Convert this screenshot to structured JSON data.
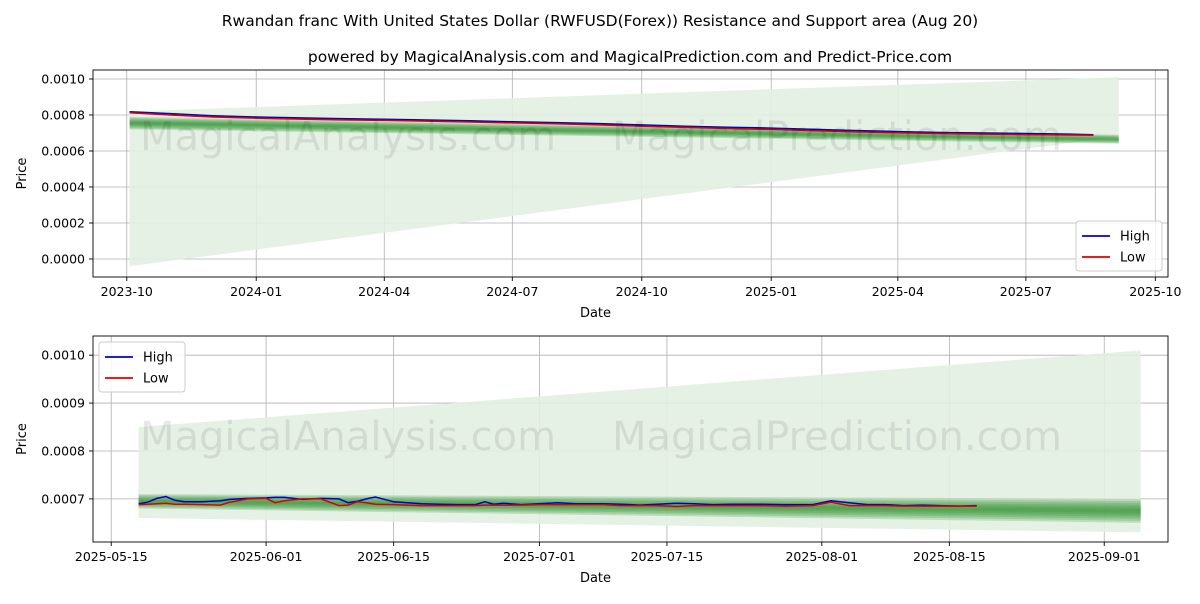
{
  "title": "Rwandan franc With United States Dollar (RWFUSD(Forex)) Resistance and Support area (Aug 20)",
  "subtitle": "powered by MagicalAnalysis.com and MagicalPrediction.com and Predict-Price.com",
  "watermarks": [
    "MagicalAnalysis.com",
    "MagicalPrediction.com"
  ],
  "colors": {
    "high": "#0000cc",
    "low": "#dd0000",
    "band": "#228b22",
    "cone": "#e3f0e3"
  },
  "chart_data": [
    {
      "type": "line",
      "title": "",
      "xlabel": "Date",
      "ylabel": "Price",
      "xlim": [
        "2023-09-07",
        "2025-10-10"
      ],
      "ylim": [
        -0.0001,
        0.00105
      ],
      "xticks": [
        {
          "date": "2023-10-01",
          "label": "2023-10"
        },
        {
          "date": "2024-01-01",
          "label": "2024-01"
        },
        {
          "date": "2024-04-01",
          "label": "2024-04"
        },
        {
          "date": "2024-07-01",
          "label": "2024-07"
        },
        {
          "date": "2024-10-01",
          "label": "2024-10"
        },
        {
          "date": "2025-01-01",
          "label": "2025-01"
        },
        {
          "date": "2025-04-01",
          "label": "2025-04"
        },
        {
          "date": "2025-07-01",
          "label": "2025-07"
        },
        {
          "date": "2025-10-01",
          "label": "2025-10"
        }
      ],
      "yticks": [
        {
          "value": 0.0,
          "label": "0.0000"
        },
        {
          "value": 0.0002,
          "label": "0.0002"
        },
        {
          "value": 0.0004,
          "label": "0.0004"
        },
        {
          "value": 0.0006,
          "label": "0.0006"
        },
        {
          "value": 0.0008,
          "label": "0.0008"
        },
        {
          "value": 0.001,
          "label": "0.0010"
        }
      ],
      "grid": true,
      "legend": {
        "position": "lower-right",
        "entries": [
          "High",
          "Low"
        ]
      },
      "series": [
        {
          "name": "High",
          "x": [
            "2023-10-03",
            "2023-11-01",
            "2023-12-01",
            "2024-01-01",
            "2024-02-01",
            "2024-03-01",
            "2024-04-01",
            "2024-05-01",
            "2024-06-01",
            "2024-07-01",
            "2024-08-01",
            "2024-09-01",
            "2024-10-01",
            "2024-11-01",
            "2024-12-01",
            "2025-01-01",
            "2025-02-01",
            "2025-03-01",
            "2025-04-01",
            "2025-05-01",
            "2025-06-01",
            "2025-07-01",
            "2025-08-01",
            "2025-08-18"
          ],
          "values": [
            0.000818,
            0.000808,
            0.000796,
            0.000789,
            0.000784,
            0.00078,
            0.000776,
            0.000772,
            0.000768,
            0.000762,
            0.000758,
            0.000752,
            0.000745,
            0.000738,
            0.000732,
            0.000727,
            0.00072,
            0.000714,
            0.000708,
            0.000703,
            0.0007,
            0.000697,
            0.000694,
            0.00069
          ]
        },
        {
          "name": "Low",
          "x": [
            "2023-10-03",
            "2023-11-01",
            "2023-12-01",
            "2024-01-01",
            "2024-02-01",
            "2024-03-01",
            "2024-04-01",
            "2024-05-01",
            "2024-06-01",
            "2024-07-01",
            "2024-08-01",
            "2024-09-01",
            "2024-10-01",
            "2024-11-01",
            "2024-12-01",
            "2025-01-01",
            "2025-02-01",
            "2025-03-01",
            "2025-04-01",
            "2025-05-01",
            "2025-06-01",
            "2025-07-01",
            "2025-08-01",
            "2025-08-18"
          ],
          "values": [
            0.000812,
            0.0008,
            0.000789,
            0.000782,
            0.000777,
            0.000773,
            0.00077,
            0.000766,
            0.000761,
            0.000756,
            0.000751,
            0.000745,
            0.000738,
            0.000731,
            0.000725,
            0.00072,
            0.000713,
            0.000707,
            0.000701,
            0.000697,
            0.000694,
            0.000691,
            0.000689,
            0.000687
          ]
        }
      ],
      "cone": {
        "start": "2023-10-03",
        "end": "2025-09-05",
        "start_range": [
          -4e-05,
          0.00082
        ],
        "end_range": [
          0.00068,
          0.00101
        ]
      },
      "band": {
        "start": "2023-10-03",
        "end": "2025-09-05",
        "start_range": [
          0.00072,
          0.00079
        ],
        "end_range": [
          0.00064,
          0.00069
        ]
      }
    },
    {
      "type": "line",
      "title": "",
      "xlabel": "Date",
      "ylabel": "Price",
      "xlim": [
        "2025-05-13",
        "2025-09-08"
      ],
      "ylim": [
        0.00061,
        0.00104
      ],
      "xticks": [
        {
          "date": "2025-05-15",
          "label": "2025-05-15"
        },
        {
          "date": "2025-06-01",
          "label": "2025-06-01"
        },
        {
          "date": "2025-06-15",
          "label": "2025-06-15"
        },
        {
          "date": "2025-07-01",
          "label": "2025-07-01"
        },
        {
          "date": "2025-07-15",
          "label": "2025-07-15"
        },
        {
          "date": "2025-08-01",
          "label": "2025-08-01"
        },
        {
          "date": "2025-08-15",
          "label": "2025-08-15"
        },
        {
          "date": "2025-09-01",
          "label": "2025-09-01"
        }
      ],
      "yticks": [
        {
          "value": 0.0007,
          "label": "0.0007"
        },
        {
          "value": 0.0008,
          "label": "0.0008"
        },
        {
          "value": 0.0009,
          "label": "0.0009"
        },
        {
          "value": 0.001,
          "label": "0.0010"
        }
      ],
      "grid": true,
      "legend": {
        "position": "upper-left",
        "entries": [
          "High",
          "Low"
        ]
      },
      "series": [
        {
          "name": "High",
          "x": [
            "2025-05-18",
            "2025-05-19",
            "2025-05-20",
            "2025-05-21",
            "2025-05-22",
            "2025-05-23",
            "2025-05-25",
            "2025-05-27",
            "2025-05-28",
            "2025-05-30",
            "2025-06-01",
            "2025-06-02",
            "2025-06-03",
            "2025-06-05",
            "2025-06-07",
            "2025-06-09",
            "2025-06-10",
            "2025-06-11",
            "2025-06-12",
            "2025-06-13",
            "2025-06-15",
            "2025-06-18",
            "2025-06-20",
            "2025-06-22",
            "2025-06-24",
            "2025-06-25",
            "2025-06-26",
            "2025-06-27",
            "2025-06-29",
            "2025-07-01",
            "2025-07-03",
            "2025-07-05",
            "2025-07-08",
            "2025-07-10",
            "2025-07-12",
            "2025-07-14",
            "2025-07-16",
            "2025-07-18",
            "2025-07-20",
            "2025-07-22",
            "2025-07-25",
            "2025-07-28",
            "2025-07-31",
            "2025-08-02",
            "2025-08-04",
            "2025-08-06",
            "2025-08-08",
            "2025-08-10",
            "2025-08-12",
            "2025-08-14",
            "2025-08-16",
            "2025-08-18"
          ],
          "values": [
            0.00069,
            0.000693,
            0.000701,
            0.000705,
            0.000697,
            0.000694,
            0.000694,
            0.000696,
            0.000699,
            0.000701,
            0.000702,
            0.000703,
            0.000703,
            0.000699,
            0.000701,
            0.0007,
            0.000692,
            0.000695,
            0.0007,
            0.000704,
            0.000694,
            0.00069,
            0.000689,
            0.000688,
            0.000688,
            0.000694,
            0.000689,
            0.000691,
            0.000688,
            0.00069,
            0.000692,
            0.00069,
            0.00069,
            0.000689,
            0.000687,
            0.000689,
            0.000691,
            0.00069,
            0.000688,
            0.000689,
            0.000689,
            0.000688,
            0.000688,
            0.000696,
            0.000692,
            0.000688,
            0.000688,
            0.000686,
            0.000687,
            0.000686,
            0.000685,
            0.000686
          ]
        },
        {
          "name": "Low",
          "x": [
            "2025-05-18",
            "2025-05-19",
            "2025-05-20",
            "2025-05-21",
            "2025-05-22",
            "2025-05-23",
            "2025-05-25",
            "2025-05-27",
            "2025-05-28",
            "2025-05-30",
            "2025-06-01",
            "2025-06-02",
            "2025-06-03",
            "2025-06-05",
            "2025-06-07",
            "2025-06-09",
            "2025-06-10",
            "2025-06-11",
            "2025-06-12",
            "2025-06-13",
            "2025-06-15",
            "2025-06-18",
            "2025-06-20",
            "2025-06-22",
            "2025-06-24",
            "2025-06-25",
            "2025-06-26",
            "2025-06-27",
            "2025-06-29",
            "2025-07-01",
            "2025-07-03",
            "2025-07-05",
            "2025-07-08",
            "2025-07-10",
            "2025-07-12",
            "2025-07-14",
            "2025-07-16",
            "2025-07-18",
            "2025-07-20",
            "2025-07-22",
            "2025-07-25",
            "2025-07-28",
            "2025-07-31",
            "2025-08-02",
            "2025-08-04",
            "2025-08-06",
            "2025-08-08",
            "2025-08-10",
            "2025-08-12",
            "2025-08-14",
            "2025-08-16",
            "2025-08-18"
          ],
          "values": [
            0.000688,
            0.000689,
            0.00069,
            0.000691,
            0.000689,
            0.000689,
            0.000688,
            0.000687,
            0.000693,
            0.0007,
            0.000701,
            0.000692,
            0.000696,
            0.0007,
            0.0007,
            0.000686,
            0.000687,
            0.000694,
            0.000692,
            0.000689,
            0.000688,
            0.000686,
            0.000686,
            0.000686,
            0.000686,
            0.000687,
            0.000687,
            0.000687,
            0.000687,
            0.000688,
            0.000688,
            0.000688,
            0.000688,
            0.000686,
            0.000686,
            0.000686,
            0.000684,
            0.000686,
            0.000686,
            0.000686,
            0.000686,
            0.000685,
            0.000686,
            0.000693,
            0.000686,
            0.000686,
            0.000686,
            0.000685,
            0.000685,
            0.000685,
            0.000685,
            0.000685
          ]
        }
      ],
      "cone": {
        "start": "2025-05-18",
        "end": "2025-09-05",
        "start_range": [
          0.00066,
          0.00085
        ],
        "end_range": [
          0.00063,
          0.00101
        ]
      },
      "band": {
        "start": "2025-05-18",
        "end": "2025-09-05",
        "start_range": [
          0.00068,
          0.00071
        ],
        "end_range": [
          0.00065,
          0.0007
        ]
      }
    }
  ]
}
